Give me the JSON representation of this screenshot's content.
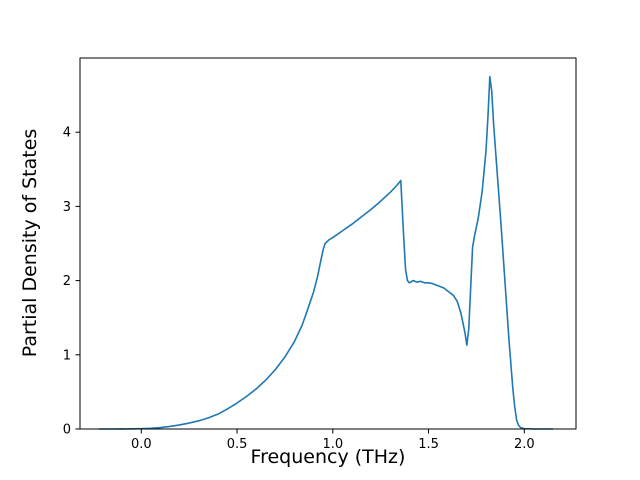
{
  "figure": {
    "background": "#ffffff",
    "axes_color": "#000000",
    "tick_label_color": "#000000"
  },
  "chart_data": {
    "type": "line",
    "title": "",
    "xlabel": "Frequency (THz)",
    "ylabel": "Partial Density of States",
    "line_color": "#1f77b4",
    "line_width": 1.6,
    "grid": false,
    "legend_position": "none",
    "xlim": [
      -0.32,
      2.27
    ],
    "ylim": [
      0,
      5.0
    ],
    "xticks": [
      0.0,
      0.5,
      1.0,
      1.5,
      2.0
    ],
    "xtick_labels": [
      "0.0",
      "0.5",
      "1.0",
      "1.5",
      "2.0"
    ],
    "yticks": [
      0,
      1,
      2,
      3,
      4
    ],
    "ytick_labels": [
      "0",
      "1",
      "2",
      "3",
      "4"
    ],
    "x": [
      -0.22,
      -0.15,
      -0.1,
      -0.05,
      0.0,
      0.05,
      0.1,
      0.15,
      0.2,
      0.25,
      0.3,
      0.35,
      0.4,
      0.45,
      0.5,
      0.55,
      0.6,
      0.65,
      0.7,
      0.75,
      0.8,
      0.84,
      0.87,
      0.9,
      0.92,
      0.94,
      0.95,
      0.96,
      0.98,
      1.0,
      1.05,
      1.1,
      1.15,
      1.2,
      1.25,
      1.3,
      1.33,
      1.35,
      1.355,
      1.36,
      1.37,
      1.38,
      1.39,
      1.4,
      1.42,
      1.44,
      1.46,
      1.48,
      1.5,
      1.52,
      1.55,
      1.58,
      1.6,
      1.63,
      1.65,
      1.67,
      1.69,
      1.7,
      1.71,
      1.72,
      1.73,
      1.74,
      1.76,
      1.78,
      1.8,
      1.81,
      1.82,
      1.83,
      1.84,
      1.86,
      1.88,
      1.9,
      1.92,
      1.94,
      1.95,
      1.96,
      1.97,
      1.98,
      2.0,
      2.05,
      2.1,
      2.15
    ],
    "y": [
      0.0,
      0.0,
      0.001,
      0.002,
      0.005,
      0.01,
      0.02,
      0.035,
      0.055,
      0.08,
      0.11,
      0.15,
      0.2,
      0.27,
      0.35,
      0.44,
      0.54,
      0.66,
      0.8,
      0.97,
      1.18,
      1.4,
      1.62,
      1.85,
      2.05,
      2.3,
      2.42,
      2.5,
      2.55,
      2.58,
      2.67,
      2.76,
      2.86,
      2.96,
      3.07,
      3.19,
      3.27,
      3.33,
      3.35,
      3.1,
      2.6,
      2.15,
      2.0,
      1.97,
      2.0,
      1.98,
      1.99,
      1.97,
      1.97,
      1.96,
      1.93,
      1.9,
      1.86,
      1.8,
      1.72,
      1.55,
      1.3,
      1.13,
      1.35,
      1.9,
      2.45,
      2.6,
      2.85,
      3.2,
      3.75,
      4.2,
      4.75,
      4.55,
      4.1,
      3.4,
      2.7,
      1.95,
      1.2,
      0.55,
      0.3,
      0.12,
      0.05,
      0.02,
      0.005,
      0.0,
      0.0,
      0.0
    ]
  }
}
